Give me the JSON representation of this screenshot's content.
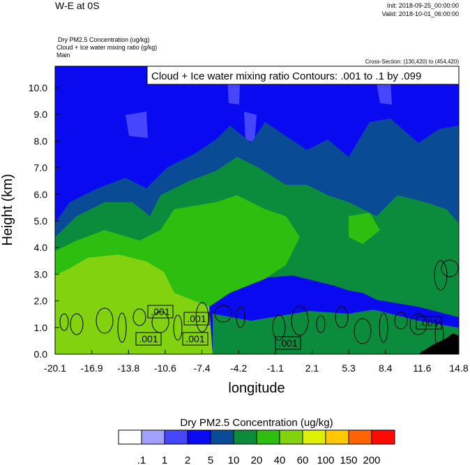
{
  "header": {
    "title": "W-E at 0S",
    "init": "Init: 2018-09-25_00:00:00",
    "valid": "Valid: 2018-10-01_06:00:00",
    "field1": "Dry PM2.5 Concentration   (ug/kg)",
    "field2": "Cloud + Ice water mixing ratio   (g/kg)",
    "field3": "Main",
    "cross_section": "Cross-Section: (130,420) to (454,420)",
    "contour_info": "Cloud + Ice water mixing ratio Contours: .001 to .1 by .099"
  },
  "chart_data": {
    "type": "heatmap",
    "xlabel": "longitude",
    "ylabel": "Height (km)",
    "xticks": [
      "-20.1",
      "-16.9",
      "-13.8",
      "-10.6",
      "-7.4",
      "-4.2",
      "-1.1",
      "2.1",
      "5.3",
      "8.4",
      "11.6",
      "14.8"
    ],
    "yticks": [
      "0.0",
      "1.0",
      "2.0",
      "3.0",
      "4.0",
      "5.0",
      "6.0",
      "7.0",
      "8.0",
      "9.0",
      "10.0"
    ],
    "xlim": [
      -20.1,
      14.8
    ],
    "ylim": [
      0,
      10.8
    ],
    "contour_labels": [
      ".001",
      ".001",
      ".001",
      ".001",
      ".001",
      ".001"
    ],
    "colorbar": {
      "title": "Dry PM2.5 Concentration  (ug/kg)",
      "levels": [
        ".1",
        "1",
        "2",
        "5",
        "10",
        "20",
        "40",
        "60",
        "100",
        "150",
        "200"
      ],
      "colors": [
        "#ffffff",
        "#a0a0ff",
        "#4646ff",
        "#0a0af0",
        "#0a4b96",
        "#0a8c3c",
        "#2dbe0f",
        "#82d20f",
        "#dcf000",
        "#ffc800",
        "#ff6400",
        "#ff0a00"
      ]
    }
  }
}
